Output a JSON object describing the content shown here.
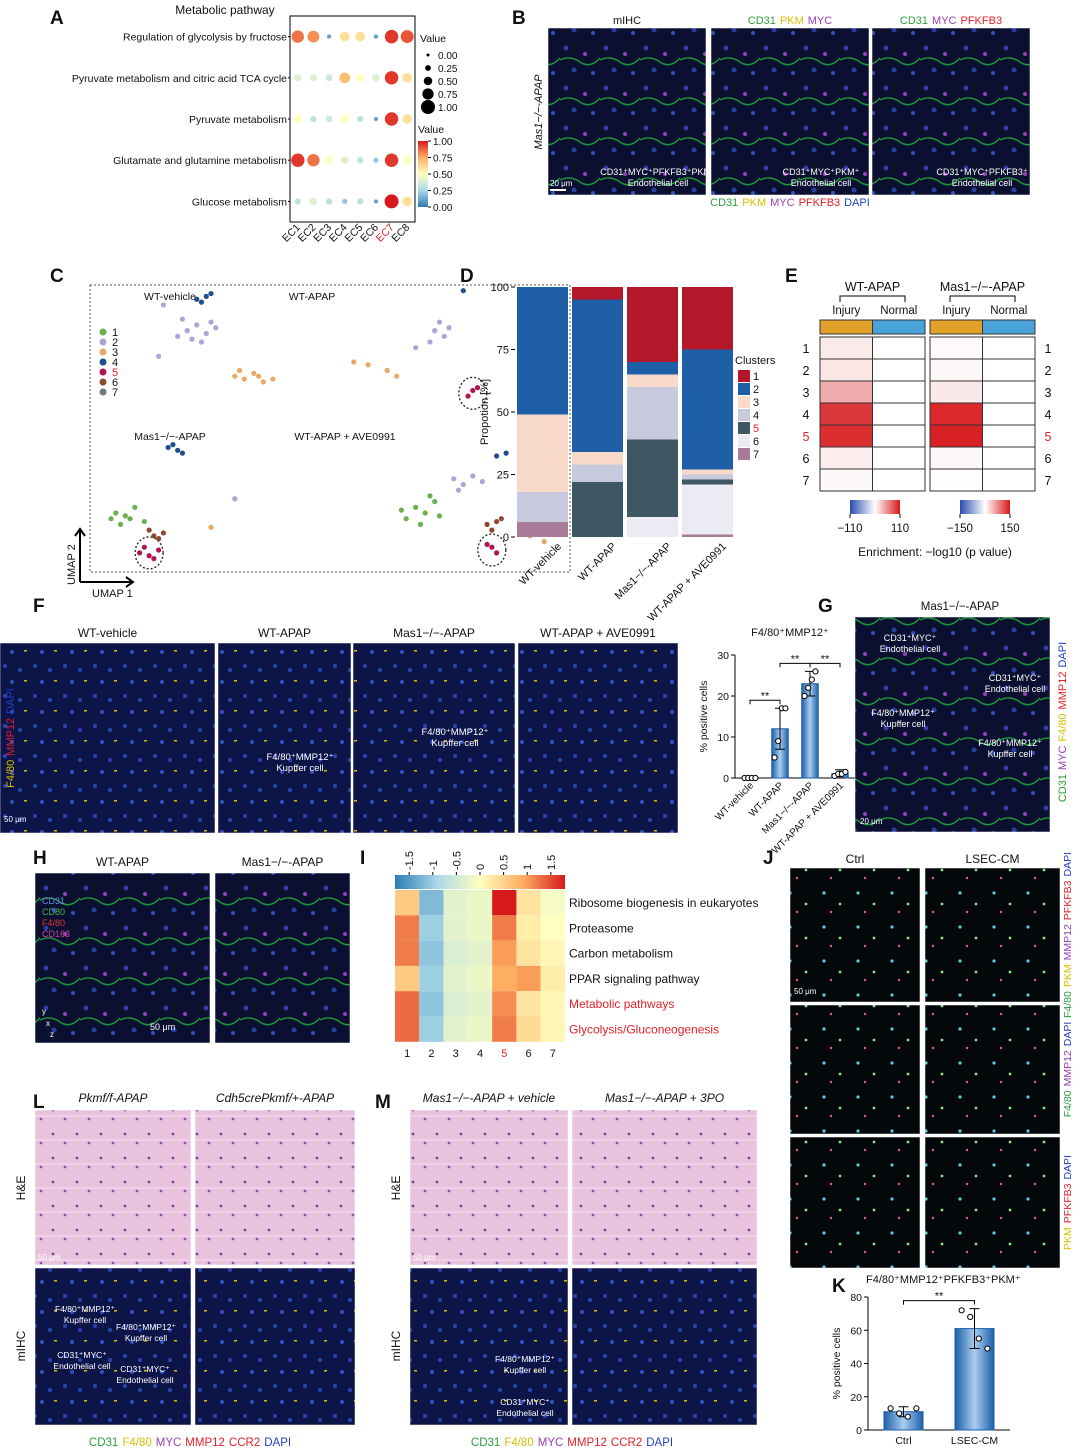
{
  "A": {
    "label": "A",
    "title": "Metabolic pathway",
    "type": "dot",
    "rows": [
      "Regulation of glycolysis by fructose",
      "Pyruvate metabolism and citric acid TCA cycle",
      "Pyruvate metabolism",
      "Glutamate and glutamine metabolism",
      "Glucose metabolism"
    ],
    "columns": [
      "EC1",
      "EC2",
      "EC3",
      "EC4",
      "EC5",
      "EC6",
      "EC7",
      "EC8"
    ],
    "highlight": "EC7",
    "highlight_color": "#e0202a",
    "values": [
      [
        0.85,
        0.8,
        0.1,
        0.6,
        0.6,
        0.1,
        0.95,
        0.9
      ],
      [
        0.4,
        0.4,
        0.35,
        0.7,
        0.5,
        0.4,
        0.95,
        0.6
      ],
      [
        0.5,
        0.3,
        0.35,
        0.5,
        0.3,
        0.1,
        0.95,
        0.6
      ],
      [
        0.95,
        0.85,
        0.5,
        0.4,
        0.3,
        0.2,
        0.95,
        0.5
      ],
      [
        0.3,
        0.4,
        0.3,
        0.2,
        0.3,
        0.1,
        1.0,
        0.6
      ]
    ],
    "colormap": [
      "#2c7bb6",
      "#abd9e9",
      "#ffffbf",
      "#fdae61",
      "#d7191c"
    ],
    "size_legend": {
      "title": "Value",
      "ticks": [
        {
          "value": 0,
          "label": "0.00"
        },
        {
          "value": 0.25,
          "label": "0.25"
        },
        {
          "value": 0.5,
          "label": "0.50"
        },
        {
          "value": 0.75,
          "label": "0.75"
        },
        {
          "value": 1,
          "label": "1.00"
        }
      ]
    },
    "color_legend": {
      "title": "Value",
      "lim": [
        0,
        1
      ],
      "ticks": [
        {
          "value": 1,
          "label": "1.00"
        },
        {
          "value": 0.75,
          "label": "0.75"
        },
        {
          "value": 0.5,
          "label": "0.50"
        },
        {
          "value": 0.25,
          "label": "0.25"
        },
        {
          "value": 0,
          "label": "0.00"
        }
      ]
    }
  },
  "B": {
    "label": "B",
    "row_label": "Mas1−/−-APAP",
    "scale": "20 μm",
    "images": [
      {
        "title": [
          {
            "text": "mIHC",
            "color": "#111111"
          }
        ],
        "note": [
          "CD31⁺MYC⁺PFKFB3⁺PKM⁺",
          "Endothelial cell"
        ]
      },
      {
        "title": [
          {
            "text": "CD31",
            "color": "#2e9e3e"
          },
          {
            "text": "PKM",
            "color": "#d8c000"
          },
          {
            "text": "MYC",
            "color": "#9b3fb5"
          }
        ],
        "note": [
          "CD31⁺MYC⁺PKM⁺",
          "Endothelial cell"
        ]
      },
      {
        "title": [
          {
            "text": "CD31",
            "color": "#2e9e3e"
          },
          {
            "text": "MYC",
            "color": "#9b3fb5"
          },
          {
            "text": "PFKFB3",
            "color": "#e0202a"
          }
        ],
        "note": [
          "CD31⁺MYC⁺PFKFB3⁺",
          "Endothelial cell"
        ]
      }
    ],
    "stains": [
      {
        "text": "CD31",
        "color": "#2e9e3e"
      },
      {
        "text": "PKM",
        "color": "#d8c000"
      },
      {
        "text": "MYC",
        "color": "#9b3fb5"
      },
      {
        "text": "PFKFB3",
        "color": "#e0202a"
      },
      {
        "text": "DAPI",
        "color": "#2040c0"
      }
    ]
  },
  "C": {
    "label": "C",
    "type": "scatter",
    "x_label": "UMAP 1",
    "y_label": "UMAP 2",
    "groups": [
      "WT-vehicle",
      "WT-APAP",
      "Mas1−/−-APAP",
      "WT-APAP + AVE0991"
    ],
    "clusters": [
      "1",
      "2",
      "3",
      "4",
      "5",
      "6",
      "7"
    ],
    "highlight": "5",
    "highlight_color": "#e0202a",
    "colors": [
      "#6ab04c",
      "#a9a6d4",
      "#e8a866",
      "#1f4e8c",
      "#b0164e",
      "#8b4a2b",
      "#777777"
    ],
    "points": [
      [
        20,
        84,
        2
      ],
      [
        22,
        86,
        2
      ],
      [
        24,
        83,
        2
      ],
      [
        21,
        81,
        2
      ],
      [
        25,
        87,
        2
      ],
      [
        19,
        88,
        2
      ],
      [
        23,
        80,
        2
      ],
      [
        26,
        85,
        2
      ],
      [
        18,
        82,
        2
      ],
      [
        22,
        95,
        4
      ],
      [
        24,
        96,
        4
      ],
      [
        23,
        94,
        4
      ],
      [
        25,
        97,
        4
      ],
      [
        30,
        68,
        3
      ],
      [
        32,
        67,
        3
      ],
      [
        34,
        69,
        3
      ],
      [
        36,
        66,
        3
      ],
      [
        31,
        70,
        3
      ],
      [
        35,
        68,
        3
      ],
      [
        38,
        67,
        3
      ],
      [
        15,
        93,
        2
      ],
      [
        14,
        75,
        2
      ],
      [
        72,
        84,
        2
      ],
      [
        74,
        82,
        2
      ],
      [
        71,
        80,
        2
      ],
      [
        75,
        85,
        2
      ],
      [
        68,
        78,
        2
      ],
      [
        73,
        87,
        2
      ],
      [
        58,
        72,
        3
      ],
      [
        62,
        70,
        3
      ],
      [
        55,
        73,
        3
      ],
      [
        64,
        68,
        3
      ],
      [
        80,
        63,
        5
      ],
      [
        79,
        61,
        5
      ],
      [
        81,
        64,
        5
      ],
      [
        78,
        98,
        4
      ],
      [
        16,
        43,
        4
      ],
      [
        18,
        42,
        4
      ],
      [
        17,
        44,
        4
      ],
      [
        19,
        41,
        4
      ],
      [
        5,
        20,
        1
      ],
      [
        8,
        18,
        1
      ],
      [
        6,
        16,
        1
      ],
      [
        9,
        22,
        1
      ],
      [
        7,
        19,
        1
      ],
      [
        11,
        17,
        1
      ],
      [
        4,
        18,
        1
      ],
      [
        13,
        12,
        6
      ],
      [
        15,
        13,
        6
      ],
      [
        14,
        11,
        6
      ],
      [
        12,
        14,
        6
      ],
      [
        10,
        6,
        5
      ],
      [
        12,
        5,
        5
      ],
      [
        14,
        7,
        5
      ],
      [
        11,
        8,
        5
      ],
      [
        13,
        4,
        5
      ],
      [
        30,
        25,
        2
      ],
      [
        25,
        15,
        3
      ],
      [
        68,
        22,
        1
      ],
      [
        70,
        20,
        1
      ],
      [
        66,
        18,
        1
      ],
      [
        72,
        24,
        1
      ],
      [
        69,
        16,
        1
      ],
      [
        65,
        21,
        1
      ],
      [
        73,
        19,
        1
      ],
      [
        71,
        26,
        1
      ],
      [
        76,
        32,
        2
      ],
      [
        78,
        30,
        2
      ],
      [
        80,
        33,
        2
      ],
      [
        77,
        28,
        2
      ],
      [
        82,
        31,
        2
      ],
      [
        83,
        16,
        6
      ],
      [
        85,
        17,
        6
      ],
      [
        84,
        14,
        6
      ],
      [
        86,
        18,
        6
      ],
      [
        92,
        12,
        3
      ],
      [
        95,
        10,
        3
      ],
      [
        97,
        13,
        3
      ],
      [
        90,
        14,
        3
      ],
      [
        85,
        40,
        4
      ],
      [
        87,
        41,
        4
      ],
      [
        84,
        8,
        5
      ],
      [
        85,
        6,
        5
      ],
      [
        83,
        9,
        5
      ]
    ]
  },
  "D": {
    "label": "D",
    "type": "stacked_bar",
    "y_label": "Propotion [%]",
    "legend_title": "Clusters",
    "highlight": "5",
    "highlight_color": "#e0202a",
    "categories": [
      "WT-vehicle",
      "WT-APAP",
      "Mas1−/−-APAP",
      "WT-APAP + AVE0991"
    ],
    "ylim": [
      0,
      100
    ],
    "yticks": [
      0,
      25,
      50,
      75,
      100
    ],
    "series": [
      {
        "name": "1",
        "color": "#b5172b",
        "values": [
          0,
          5,
          30,
          25
        ]
      },
      {
        "name": "2",
        "color": "#1f5fa8",
        "values": [
          51,
          61,
          5,
          48
        ]
      },
      {
        "name": "3",
        "color": "#f9d9c9",
        "values": [
          31,
          5,
          5,
          2
        ]
      },
      {
        "name": "4",
        "color": "#c7c9dc",
        "values": [
          12,
          7,
          21,
          2
        ]
      },
      {
        "name": "5",
        "color": "#3f5663",
        "values": [
          0,
          22,
          31,
          2
        ]
      },
      {
        "name": "6",
        "color": "#eceaf2",
        "values": [
          0,
          0,
          8,
          20
        ]
      },
      {
        "name": "7",
        "color": "#a87c98",
        "values": [
          6,
          0,
          0,
          1
        ]
      }
    ]
  },
  "E": {
    "label": "E",
    "type": "heatmap",
    "rows": [
      "1",
      "2",
      "3",
      "4",
      "5",
      "6",
      "7"
    ],
    "highlight": "5",
    "highlight_color": "#e0202a",
    "x_label": "Enrichment: −log10 (p value)",
    "column_colors": [
      "#e2a128",
      "#4aa3d8"
    ],
    "colormap": [
      "#2b4bb0",
      "#ffffff",
      "#d7191c"
    ],
    "groups": [
      {
        "title": "WT-APAP",
        "columns": [
          "Injury",
          "Normal"
        ],
        "values": [
          [
            10,
            0
          ],
          [
            12,
            0
          ],
          [
            40,
            0
          ],
          [
            95,
            0
          ],
          [
            100,
            0
          ],
          [
            8,
            0
          ],
          [
            3,
            0
          ]
        ],
        "lim": [
          -110,
          110
        ],
        "ticks": [
          {
            "value": -110,
            "label": "−110"
          },
          110
        ]
      },
      {
        "title": "Mas1−/−-APAP",
        "columns": [
          "Injury",
          "Normal"
        ],
        "values": [
          [
            3,
            0
          ],
          [
            5,
            0
          ],
          [
            15,
            0
          ],
          [
            140,
            0
          ],
          [
            145,
            0
          ],
          [
            5,
            0
          ],
          [
            2,
            0
          ]
        ],
        "lim": [
          -150,
          150
        ],
        "ticks": [
          {
            "value": -150,
            "label": "−150"
          },
          150
        ]
      }
    ]
  },
  "F": {
    "label": "F",
    "scale": "50 μm",
    "stains": [
      {
        "text": "F4/80",
        "color": "#d8c000"
      },
      {
        "text": "MMP12",
        "color": "#e0202a"
      },
      {
        "text": "DAPI",
        "color": "#2040c0"
      }
    ],
    "images": [
      {
        "title": "WT-vehicle"
      },
      {
        "title": "WT-APAP",
        "note": [
          "F4/80⁺MMP12⁺",
          "Kupffer cell"
        ]
      },
      {
        "title": "Mas1−/−-APAP",
        "note": [
          "F4/80⁺MMP12⁺",
          "Kupffer cell"
        ]
      },
      {
        "title": "WT-APAP + AVE0991"
      }
    ],
    "chart": {
      "type": "bar",
      "title": "F4/80⁺MMP12⁺",
      "y_label": "% positive cells",
      "categories": [
        "WT-vehicle",
        "WT-APAP",
        "Mas1−/−-APAP",
        "WT-APAP + AVE0991"
      ],
      "values": [
        0,
        12,
        23,
        1
      ],
      "errors": [
        0,
        5,
        3,
        1
      ],
      "points": [
        [
          0,
          0,
          0,
          0
        ],
        [
          5,
          9,
          17,
          17
        ],
        [
          20,
          22,
          24,
          26
        ],
        [
          0.5,
          1,
          1,
          1.5
        ]
      ],
      "ylim": [
        0,
        30
      ],
      "yticks": [
        0,
        10,
        20,
        30
      ],
      "significance": [
        {
          "pair": [
            "WT-vehicle",
            "WT-APAP"
          ],
          "label": "**"
        },
        {
          "pair": [
            "WT-APAP",
            "Mas1−/−-APAP"
          ],
          "label": "**"
        },
        {
          "pair": [
            "Mas1−/−-APAP",
            "WT-APAP + AVE0991"
          ],
          "label": "**"
        }
      ]
    }
  },
  "G": {
    "label": "G",
    "title": "Mas1−/−-APAP",
    "scale": "20 μm",
    "notes": [
      [
        "CD31⁺MYC⁺",
        "Endothelial cell"
      ],
      [
        "CD31⁺MYC⁺",
        "Endothelial cell"
      ],
      [
        "F4/80⁺MMP12⁺",
        "Kupffer cell"
      ],
      [
        "F4/80⁺MMP12⁺",
        "Kupffer cell"
      ]
    ],
    "stains": [
      {
        "text": "CD31",
        "color": "#2e9e3e"
      },
      {
        "text": "MYC",
        "color": "#9b3fb5"
      },
      {
        "text": "F4/80",
        "color": "#d8c000"
      },
      {
        "text": "MMP12",
        "color": "#e0202a"
      },
      {
        "text": "DAPI",
        "color": "#2040c0"
      }
    ]
  },
  "H": {
    "label": "H",
    "titles": [
      "WT-APAP",
      "Mas1−/−-APAP"
    ],
    "scale": "50 μm",
    "axes": [
      "x",
      "y",
      "z"
    ],
    "stains": [
      {
        "text": "CD31",
        "color": "#6a8fe0"
      },
      {
        "text": "CD80",
        "color": "#4caf50"
      },
      {
        "text": "F4/80",
        "color": "#e03030"
      },
      {
        "text": "CD163",
        "color": "#d040a0"
      }
    ]
  },
  "I": {
    "label": "I",
    "type": "heatmap",
    "rows": [
      "Ribosome biogenesis in eukaryotes",
      "Proteasome",
      "Carbon metabolism",
      "PPAR signaling pathway",
      "Metabolic pathways",
      "Glycolysis/Gluconeogenesis"
    ],
    "highlight_rows": [
      "Metabolic pathways",
      "Glycolysis/Gluconeogenesis"
    ],
    "columns": [
      "1",
      "2",
      "3",
      "4",
      "5",
      "6",
      "7"
    ],
    "highlight": "5",
    "highlight_color": "#e0202a",
    "values": [
      [
        0.6,
        -1.2,
        -0.3,
        -0.2,
        1.8,
        0.3,
        -0.1
      ],
      [
        1.2,
        -1.0,
        -0.3,
        -0.2,
        1.2,
        0.2,
        0.0
      ],
      [
        1.2,
        -1.1,
        -0.4,
        -0.3,
        1.0,
        0.3,
        0.1
      ],
      [
        0.6,
        -1.0,
        -0.3,
        -0.2,
        0.9,
        1.0,
        0.2
      ],
      [
        1.3,
        -1.1,
        -0.4,
        -0.3,
        1.1,
        0.3,
        0.1
      ],
      [
        1.3,
        -1.0,
        -0.3,
        -0.2,
        1.2,
        0.4,
        0.1
      ]
    ],
    "lim": [
      -1.8,
      1.8
    ],
    "ticks": [
      -1.5,
      -1,
      -0.5,
      0,
      0.5,
      1,
      1.5
    ],
    "colormap": [
      "#2c7bb6",
      "#abd9e9",
      "#ffffbf",
      "#fdae61",
      "#d7191c"
    ]
  },
  "J": {
    "label": "J",
    "columns": [
      "Ctrl",
      "LSEC-CM"
    ],
    "scale": "50 μm",
    "rows": [
      [
        {
          "text": "F4/80",
          "color": "#2e9e3e"
        },
        {
          "text": "PKM",
          "color": "#d8c000"
        },
        {
          "text": "MMP12",
          "color": "#9b3fb5"
        },
        {
          "text": "PFKFB3",
          "color": "#e0202a"
        },
        {
          "text": "DAPI",
          "color": "#2040c0"
        }
      ],
      [
        {
          "text": "F4/80",
          "color": "#2e9e3e"
        },
        {
          "text": "MMP12",
          "color": "#9b3fb5"
        },
        {
          "text": "DAPI",
          "color": "#2040c0"
        }
      ],
      [
        {
          "text": "PKM",
          "color": "#d8c000"
        },
        {
          "text": "PFKFB3",
          "color": "#e0202a"
        },
        {
          "text": "DAPI",
          "color": "#2040c0"
        }
      ]
    ]
  },
  "K": {
    "label": "K",
    "type": "bar",
    "title": "F4/80⁺MMP12⁺PFKFB3⁺PKM⁺",
    "y_label": "% positive cells",
    "categories": [
      "Ctrl",
      "LSEC-CM"
    ],
    "values": [
      11,
      61
    ],
    "errors": [
      3,
      12
    ],
    "points": [
      [
        13,
        10,
        8,
        13
      ],
      [
        72,
        68,
        55,
        49
      ]
    ],
    "ylim": [
      0,
      80
    ],
    "yticks": [
      0,
      20,
      40,
      60,
      80
    ],
    "significance": [
      {
        "pair": [
          "Ctrl",
          "LSEC-CM"
        ],
        "label": "**"
      }
    ]
  },
  "L": {
    "label": "L",
    "titles": [
      "Pkmf/f-APAP",
      "Cdh5crePkmf/+-APAP"
    ],
    "row_labels": [
      "H&E",
      "mIHC"
    ],
    "scale": "50 μm",
    "notes": [
      [
        "F4/80⁺MMP12⁺",
        "Kupffer cell"
      ],
      [
        "F4/80⁺MMP12⁺",
        "Kupffer cell"
      ],
      [
        "CD31⁺MYC⁺",
        "Endothelial cell"
      ],
      [
        "CD31⁺MYC⁺",
        "Endothelial cell"
      ]
    ],
    "stains": [
      {
        "text": "CD31",
        "color": "#2e9e3e"
      },
      {
        "text": "F4/80",
        "color": "#d8c000"
      },
      {
        "text": "MYC",
        "color": "#9b3fb5"
      },
      {
        "text": "MMP12",
        "color": "#e0202a"
      },
      {
        "text": "CCR2",
        "color": "#e0202a"
      },
      {
        "text": "DAPI",
        "color": "#2040c0"
      }
    ]
  },
  "M": {
    "label": "M",
    "titles": [
      "Mas1−/−-APAP + vehicle",
      "Mas1−/−-APAP + 3PO"
    ],
    "row_labels": [
      "H&E",
      "mIHC"
    ],
    "scale": "50 μm",
    "notes": [
      [
        "F4/80⁺MMP12⁺",
        "Kupffer cell"
      ],
      [
        "CD31⁺MYC⁺",
        "Endothelial cell"
      ]
    ],
    "stains": [
      {
        "text": "CD31",
        "color": "#2e9e3e"
      },
      {
        "text": "F4/80",
        "color": "#d8c000"
      },
      {
        "text": "MYC",
        "color": "#9b3fb5"
      },
      {
        "text": "MMP12",
        "color": "#e0202a"
      },
      {
        "text": "CCR2",
        "color": "#e0202a"
      },
      {
        "text": "DAPI",
        "color": "#2040c0"
      }
    ]
  }
}
